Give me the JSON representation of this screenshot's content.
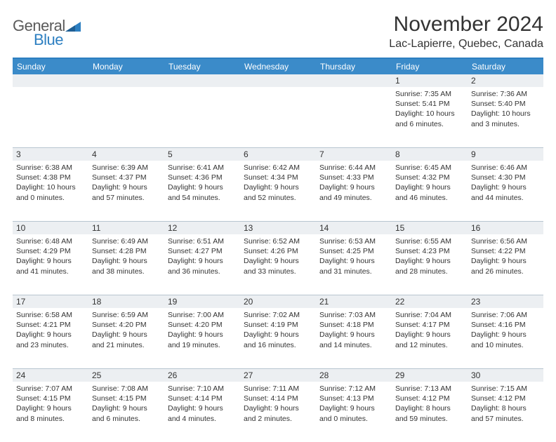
{
  "brand": {
    "name_part1": "General",
    "name_part2": "Blue",
    "color_general": "#5a5a5a",
    "color_blue": "#2d7fc1",
    "triangle_color": "#2d7fc1"
  },
  "header": {
    "title": "November 2024",
    "location": "Lac-Lapierre, Quebec, Canada"
  },
  "colors": {
    "header_bar": "#3b8bc9",
    "header_border": "#2d7fc1",
    "daynum_bg": "#eceff2",
    "week_border": "#b8c5d0",
    "text": "#333333",
    "background": "#ffffff"
  },
  "weekdays": [
    "Sunday",
    "Monday",
    "Tuesday",
    "Wednesday",
    "Thursday",
    "Friday",
    "Saturday"
  ],
  "weeks": [
    [
      {
        "num": "",
        "sunrise": "",
        "sunset": "",
        "daylight1": "",
        "daylight2": ""
      },
      {
        "num": "",
        "sunrise": "",
        "sunset": "",
        "daylight1": "",
        "daylight2": ""
      },
      {
        "num": "",
        "sunrise": "",
        "sunset": "",
        "daylight1": "",
        "daylight2": ""
      },
      {
        "num": "",
        "sunrise": "",
        "sunset": "",
        "daylight1": "",
        "daylight2": ""
      },
      {
        "num": "",
        "sunrise": "",
        "sunset": "",
        "daylight1": "",
        "daylight2": ""
      },
      {
        "num": "1",
        "sunrise": "Sunrise: 7:35 AM",
        "sunset": "Sunset: 5:41 PM",
        "daylight1": "Daylight: 10 hours",
        "daylight2": "and 6 minutes."
      },
      {
        "num": "2",
        "sunrise": "Sunrise: 7:36 AM",
        "sunset": "Sunset: 5:40 PM",
        "daylight1": "Daylight: 10 hours",
        "daylight2": "and 3 minutes."
      }
    ],
    [
      {
        "num": "3",
        "sunrise": "Sunrise: 6:38 AM",
        "sunset": "Sunset: 4:38 PM",
        "daylight1": "Daylight: 10 hours",
        "daylight2": "and 0 minutes."
      },
      {
        "num": "4",
        "sunrise": "Sunrise: 6:39 AM",
        "sunset": "Sunset: 4:37 PM",
        "daylight1": "Daylight: 9 hours",
        "daylight2": "and 57 minutes."
      },
      {
        "num": "5",
        "sunrise": "Sunrise: 6:41 AM",
        "sunset": "Sunset: 4:36 PM",
        "daylight1": "Daylight: 9 hours",
        "daylight2": "and 54 minutes."
      },
      {
        "num": "6",
        "sunrise": "Sunrise: 6:42 AM",
        "sunset": "Sunset: 4:34 PM",
        "daylight1": "Daylight: 9 hours",
        "daylight2": "and 52 minutes."
      },
      {
        "num": "7",
        "sunrise": "Sunrise: 6:44 AM",
        "sunset": "Sunset: 4:33 PM",
        "daylight1": "Daylight: 9 hours",
        "daylight2": "and 49 minutes."
      },
      {
        "num": "8",
        "sunrise": "Sunrise: 6:45 AM",
        "sunset": "Sunset: 4:32 PM",
        "daylight1": "Daylight: 9 hours",
        "daylight2": "and 46 minutes."
      },
      {
        "num": "9",
        "sunrise": "Sunrise: 6:46 AM",
        "sunset": "Sunset: 4:30 PM",
        "daylight1": "Daylight: 9 hours",
        "daylight2": "and 44 minutes."
      }
    ],
    [
      {
        "num": "10",
        "sunrise": "Sunrise: 6:48 AM",
        "sunset": "Sunset: 4:29 PM",
        "daylight1": "Daylight: 9 hours",
        "daylight2": "and 41 minutes."
      },
      {
        "num": "11",
        "sunrise": "Sunrise: 6:49 AM",
        "sunset": "Sunset: 4:28 PM",
        "daylight1": "Daylight: 9 hours",
        "daylight2": "and 38 minutes."
      },
      {
        "num": "12",
        "sunrise": "Sunrise: 6:51 AM",
        "sunset": "Sunset: 4:27 PM",
        "daylight1": "Daylight: 9 hours",
        "daylight2": "and 36 minutes."
      },
      {
        "num": "13",
        "sunrise": "Sunrise: 6:52 AM",
        "sunset": "Sunset: 4:26 PM",
        "daylight1": "Daylight: 9 hours",
        "daylight2": "and 33 minutes."
      },
      {
        "num": "14",
        "sunrise": "Sunrise: 6:53 AM",
        "sunset": "Sunset: 4:25 PM",
        "daylight1": "Daylight: 9 hours",
        "daylight2": "and 31 minutes."
      },
      {
        "num": "15",
        "sunrise": "Sunrise: 6:55 AM",
        "sunset": "Sunset: 4:23 PM",
        "daylight1": "Daylight: 9 hours",
        "daylight2": "and 28 minutes."
      },
      {
        "num": "16",
        "sunrise": "Sunrise: 6:56 AM",
        "sunset": "Sunset: 4:22 PM",
        "daylight1": "Daylight: 9 hours",
        "daylight2": "and 26 minutes."
      }
    ],
    [
      {
        "num": "17",
        "sunrise": "Sunrise: 6:58 AM",
        "sunset": "Sunset: 4:21 PM",
        "daylight1": "Daylight: 9 hours",
        "daylight2": "and 23 minutes."
      },
      {
        "num": "18",
        "sunrise": "Sunrise: 6:59 AM",
        "sunset": "Sunset: 4:20 PM",
        "daylight1": "Daylight: 9 hours",
        "daylight2": "and 21 minutes."
      },
      {
        "num": "19",
        "sunrise": "Sunrise: 7:00 AM",
        "sunset": "Sunset: 4:20 PM",
        "daylight1": "Daylight: 9 hours",
        "daylight2": "and 19 minutes."
      },
      {
        "num": "20",
        "sunrise": "Sunrise: 7:02 AM",
        "sunset": "Sunset: 4:19 PM",
        "daylight1": "Daylight: 9 hours",
        "daylight2": "and 16 minutes."
      },
      {
        "num": "21",
        "sunrise": "Sunrise: 7:03 AM",
        "sunset": "Sunset: 4:18 PM",
        "daylight1": "Daylight: 9 hours",
        "daylight2": "and 14 minutes."
      },
      {
        "num": "22",
        "sunrise": "Sunrise: 7:04 AM",
        "sunset": "Sunset: 4:17 PM",
        "daylight1": "Daylight: 9 hours",
        "daylight2": "and 12 minutes."
      },
      {
        "num": "23",
        "sunrise": "Sunrise: 7:06 AM",
        "sunset": "Sunset: 4:16 PM",
        "daylight1": "Daylight: 9 hours",
        "daylight2": "and 10 minutes."
      }
    ],
    [
      {
        "num": "24",
        "sunrise": "Sunrise: 7:07 AM",
        "sunset": "Sunset: 4:15 PM",
        "daylight1": "Daylight: 9 hours",
        "daylight2": "and 8 minutes."
      },
      {
        "num": "25",
        "sunrise": "Sunrise: 7:08 AM",
        "sunset": "Sunset: 4:15 PM",
        "daylight1": "Daylight: 9 hours",
        "daylight2": "and 6 minutes."
      },
      {
        "num": "26",
        "sunrise": "Sunrise: 7:10 AM",
        "sunset": "Sunset: 4:14 PM",
        "daylight1": "Daylight: 9 hours",
        "daylight2": "and 4 minutes."
      },
      {
        "num": "27",
        "sunrise": "Sunrise: 7:11 AM",
        "sunset": "Sunset: 4:14 PM",
        "daylight1": "Daylight: 9 hours",
        "daylight2": "and 2 minutes."
      },
      {
        "num": "28",
        "sunrise": "Sunrise: 7:12 AM",
        "sunset": "Sunset: 4:13 PM",
        "daylight1": "Daylight: 9 hours",
        "daylight2": "and 0 minutes."
      },
      {
        "num": "29",
        "sunrise": "Sunrise: 7:13 AM",
        "sunset": "Sunset: 4:12 PM",
        "daylight1": "Daylight: 8 hours",
        "daylight2": "and 59 minutes."
      },
      {
        "num": "30",
        "sunrise": "Sunrise: 7:15 AM",
        "sunset": "Sunset: 4:12 PM",
        "daylight1": "Daylight: 8 hours",
        "daylight2": "and 57 minutes."
      }
    ]
  ]
}
